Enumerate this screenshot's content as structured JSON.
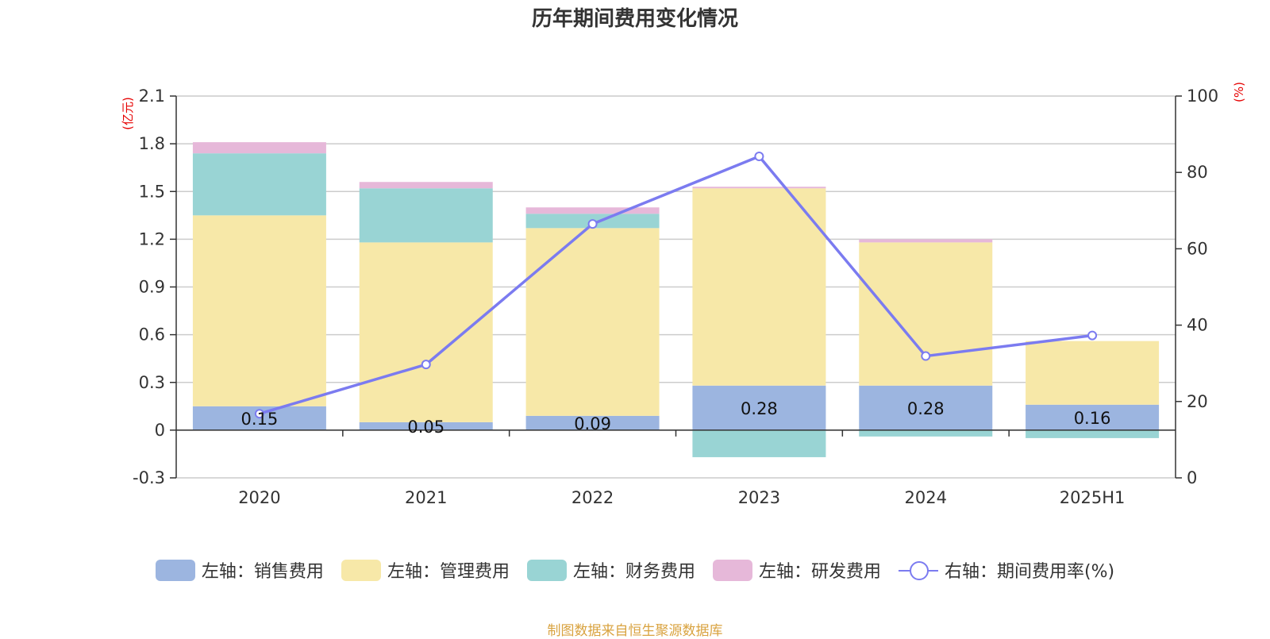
{
  "chart_data": {
    "type": "bar",
    "title": "历年期间费用变化情况",
    "categories": [
      "2020",
      "2021",
      "2022",
      "2023",
      "2024",
      "2025H1"
    ],
    "left_axis": {
      "unit": "(亿元)",
      "ylim": [
        -0.3,
        2.1
      ],
      "ticks": [
        "2.1",
        "1.8",
        "1.5",
        "1.2",
        "0.9",
        "0.6",
        "0.3",
        "0",
        "-0.3"
      ]
    },
    "right_axis": {
      "unit": "(%)",
      "ylim": [
        0,
        100
      ],
      "ticks": [
        "100",
        "80",
        "60",
        "40",
        "20",
        "0"
      ]
    },
    "series": [
      {
        "name": "左轴：销售费用",
        "type": "bar",
        "color": "#9cb5e0",
        "values": [
          0.15,
          0.05,
          0.09,
          0.28,
          0.28,
          0.16
        ],
        "labels": [
          "0.15",
          "0.05",
          "0.09",
          "0.28",
          "0.28",
          "0.16"
        ]
      },
      {
        "name": "左轴：管理费用",
        "type": "bar",
        "color": "#f7e8a8",
        "values": [
          1.2,
          1.13,
          1.18,
          1.24,
          0.9,
          0.4
        ]
      },
      {
        "name": "左轴：财务费用",
        "type": "bar",
        "color": "#99d4d4",
        "values": [
          0.39,
          0.34,
          0.09,
          -0.17,
          -0.04,
          -0.05
        ]
      },
      {
        "name": "左轴：研发费用",
        "type": "bar",
        "color": "#e6b8d9",
        "values": [
          0.07,
          0.04,
          0.04,
          0.01,
          0.02,
          0.0
        ]
      },
      {
        "name": "右轴：期间费用率(%)",
        "type": "line",
        "color": "#7b7bf0",
        "values": [
          16.8,
          29.7,
          66.5,
          84.2,
          31.9,
          37.3
        ]
      }
    ],
    "grid": true,
    "legend_position": "bottom"
  },
  "source_text": "制图数据来自恒生聚源数据库"
}
